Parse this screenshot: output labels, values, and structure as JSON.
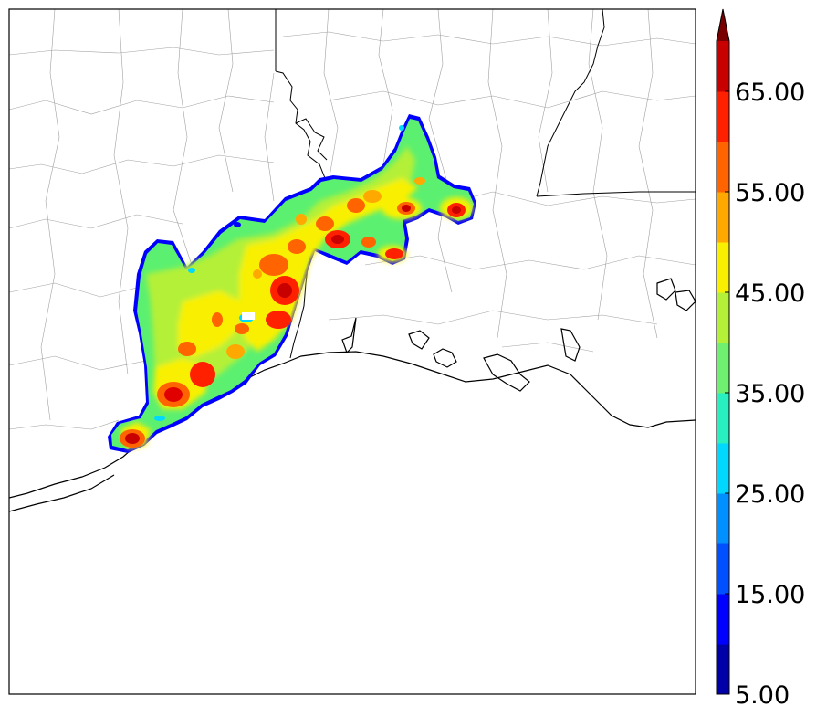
{
  "colorbar": {
    "levels": [
      5,
      10,
      15,
      20,
      25,
      30,
      35,
      40,
      45,
      50,
      55,
      60,
      65,
      70
    ],
    "colors": [
      "#0000a8",
      "#0000ff",
      "#0050ff",
      "#0090ff",
      "#00d8ff",
      "#28f0c0",
      "#70f070",
      "#b4f038",
      "#f8f000",
      "#ffa800",
      "#ff6400",
      "#ff2000",
      "#c80000"
    ],
    "over_color": "#780000",
    "tick_labels": [
      "5.00",
      "15.00",
      "25.00",
      "35.00",
      "45.00",
      "55.00",
      "65.00"
    ],
    "tick_values": [
      5,
      15,
      25,
      35,
      45,
      55,
      65
    ]
  },
  "map": {
    "boundary_color": "#000000",
    "county_line_color": "#9a9a9a",
    "background": "#ffffff"
  }
}
